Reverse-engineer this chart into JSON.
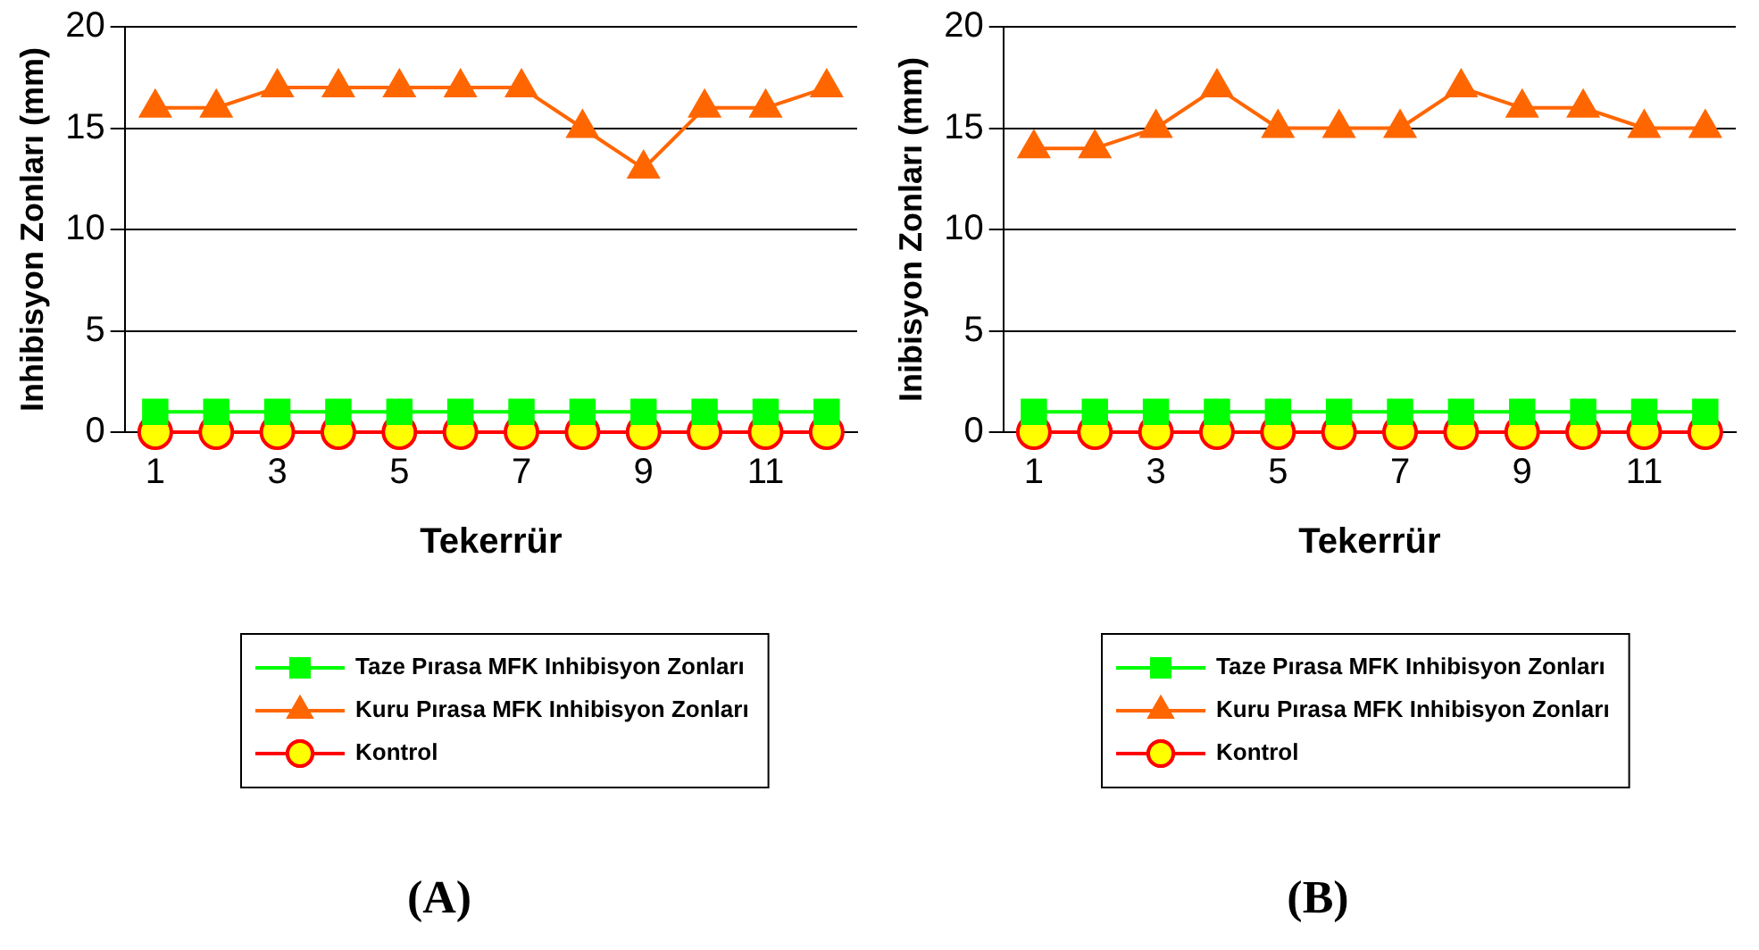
{
  "chart_data": [
    {
      "type": "line",
      "title": "(A)",
      "xlabel": "Tekerrür",
      "ylabel": "Inhibisyon Zonları (mm)",
      "categories": [
        "1",
        null,
        "3",
        null,
        "5",
        null,
        "7",
        null,
        "9",
        null,
        "11",
        null
      ],
      "series": [
        {
          "name": "Taze Pırasa MFK Inhibisyon Zonları",
          "color": "#00ff00",
          "marker": "square",
          "values": [
            1,
            1,
            1,
            1,
            1,
            1,
            1,
            1,
            1,
            1,
            1,
            1
          ]
        },
        {
          "name": "Kuru Pırasa MFK Inhibisyon Zonları",
          "color": "#ff6600",
          "marker": "triangle",
          "values": [
            16,
            16,
            17,
            17,
            17,
            17,
            17,
            15,
            13,
            16,
            16,
            17
          ]
        },
        {
          "name": "Kontrol",
          "color": "#ff0000",
          "marker": "circle",
          "values": [
            0,
            0,
            0,
            0,
            0,
            0,
            0,
            0,
            0,
            0,
            0,
            0
          ]
        }
      ],
      "ylim": [
        0,
        20
      ],
      "yticks": [
        0,
        5,
        10,
        15,
        20
      ],
      "grid": "y",
      "legend": "bottom"
    },
    {
      "type": "line",
      "title": "(B)",
      "xlabel": "Tekerrür",
      "ylabel": "Inibisyon Zonları (mm)",
      "categories": [
        "1",
        null,
        "3",
        null,
        "5",
        null,
        "7",
        null,
        "9",
        null,
        "11",
        null
      ],
      "series": [
        {
          "name": "Taze Pırasa MFK Inhibisyon Zonları",
          "color": "#00ff00",
          "marker": "square",
          "values": [
            1,
            1,
            1,
            1,
            1,
            1,
            1,
            1,
            1,
            1,
            1,
            1
          ]
        },
        {
          "name": "Kuru Pırasa MFK Inhibisyon Zonları",
          "color": "#ff6600",
          "marker": "triangle",
          "values": [
            14,
            14,
            15,
            17,
            15,
            15,
            15,
            17,
            16,
            16,
            15,
            15
          ]
        },
        {
          "name": "Kontrol",
          "color": "#ff0000",
          "marker": "circle",
          "values": [
            0,
            0,
            0,
            0,
            0,
            0,
            0,
            0,
            0,
            0,
            0,
            0
          ]
        }
      ],
      "ylim": [
        0,
        20
      ],
      "yticks": [
        0,
        5,
        10,
        15,
        20
      ],
      "grid": "y",
      "legend": "bottom"
    }
  ]
}
